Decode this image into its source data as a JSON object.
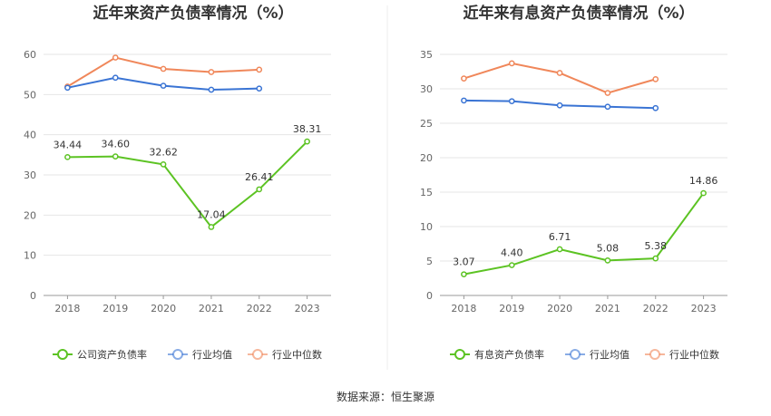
{
  "source_label": "数据来源：恒生聚源",
  "chart_data": [
    {
      "type": "line",
      "title": "近年来资产负债率情况（%）",
      "categories": [
        "2018",
        "2019",
        "2020",
        "2021",
        "2022",
        "2023"
      ],
      "ylim": [
        0,
        60
      ],
      "yticks": [
        0,
        10,
        20,
        30,
        40,
        50,
        60
      ],
      "grid": true,
      "legend_position": "bottom",
      "series": [
        {
          "name": "公司资产负债率",
          "color": "#5cc323",
          "values": [
            34.44,
            34.6,
            32.62,
            17.04,
            26.41,
            38.31
          ],
          "labels": [
            "34.44",
            "34.60",
            "32.62",
            "17.04",
            "26.41",
            "38.31"
          ]
        },
        {
          "name": "行业均值",
          "color": "#3a74d4",
          "values": [
            51.7,
            54.2,
            52.2,
            51.2,
            51.5,
            null
          ]
        },
        {
          "name": "行业中位数",
          "color": "#f0875a",
          "values": [
            52.0,
            59.2,
            56.4,
            55.6,
            56.2,
            null
          ]
        }
      ]
    },
    {
      "type": "line",
      "title": "近年来有息资产负债率情况（%）",
      "categories": [
        "2018",
        "2019",
        "2020",
        "2021",
        "2022",
        "2023"
      ],
      "ylim": [
        0,
        35
      ],
      "yticks": [
        0,
        5,
        10,
        15,
        20,
        25,
        30,
        35
      ],
      "grid": true,
      "legend_position": "bottom",
      "series": [
        {
          "name": "有息资产负债率",
          "color": "#5cc323",
          "values": [
            3.07,
            4.4,
            6.71,
            5.08,
            5.38,
            14.86
          ],
          "labels": [
            "3.07",
            "4.40",
            "6.71",
            "5.08",
            "5.38",
            "14.86"
          ]
        },
        {
          "name": "行业均值",
          "color": "#3a74d4",
          "values": [
            28.3,
            28.2,
            27.6,
            27.4,
            27.2,
            null
          ]
        },
        {
          "name": "行业中位数",
          "color": "#f0875a",
          "values": [
            31.5,
            33.7,
            32.3,
            29.4,
            31.4,
            null
          ]
        }
      ]
    }
  ]
}
